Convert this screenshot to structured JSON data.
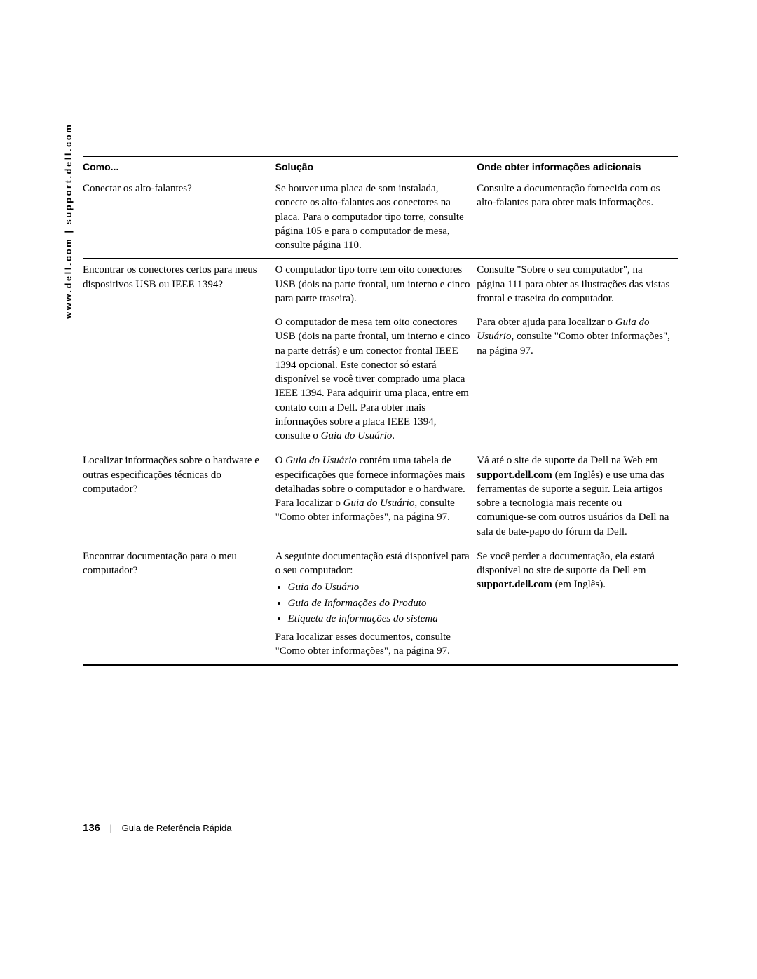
{
  "side_label": "www.dell.com | support.dell.com",
  "headers": {
    "c1": "Como...",
    "c2": "Solução",
    "c3": "Onde obter informações adicionais"
  },
  "rows": {
    "r1": {
      "c1": "Conectar os alto-falantes?",
      "c2": "Se houver uma placa de som instalada, conecte os alto-falantes aos conectores na placa. Para o computador tipo torre, consulte página 105 e para o computador de mesa, consulte página 110.",
      "c3": "Consulte a documentação fornecida com os alto-falantes para obter mais informações."
    },
    "r2a": {
      "c1": "Encontrar os conectores certos para meus dispositivos USB ou IEEE 1394?",
      "c2": "O computador tipo torre tem oito conectores USB (dois na parte frontal, um interno e cinco para parte traseira).",
      "c3": "Consulte \"Sobre o seu computador\", na página 111 para obter as ilustrações das vistas frontal e traseira do computador."
    },
    "r2b": {
      "c2_pre": "O computador de mesa tem oito conectores USB (dois na parte frontal, um interno e cinco na parte detrás) e um conector frontal IEEE 1394 opcional. Este conector só estará disponível se você tiver comprado uma placa IEEE 1394. Para adquirir uma placa, entre em contato com a Dell. Para obter mais informações sobre a placa IEEE 1394, consulte o ",
      "c2_ital": "Guia do Usuário",
      "c2_post": ".",
      "c3_pre": "Para obter ajuda para localizar o ",
      "c3_ital": "Guia do Usuário",
      "c3_mid": ", consulte \"Como obter informações\", na página 97."
    },
    "r3": {
      "c1": "Localizar informações sobre o hardware e outras especificações técnicas do computador?",
      "c2_pre": "O ",
      "c2_ital1": "Guia do Usuário",
      "c2_mid": " contém uma tabela de especificações que fornece informações mais detalhadas sobre o computador e o hardware. Para localizar o ",
      "c2_ital2": "Guia do Usuário",
      "c2_post": ", consulte \"Como obter informações\", na página 97.",
      "c3_pre": "Vá até o site de suporte da Dell na Web em ",
      "c3_bold": "support.dell.com",
      "c3_post": " (em Inglês) e use uma das ferramentas de suporte a seguir. Leia artigos sobre a tecnologia mais recente ou comunique-se com outros usuários da Dell na sala de bate-papo do fórum da Dell."
    },
    "r4": {
      "c1": "Encontrar documentação para o meu computador?",
      "c2_intro": "A seguinte documentação está disponível para o seu computador:",
      "c2_items": [
        "Guia do Usuário",
        "Guia de Informações do Produto",
        "Etiqueta de informações do sistema"
      ],
      "c2_tail": "Para localizar esses documentos, consulte \"Como obter informações\", na página 97.",
      "c3_pre": "Se você perder a documentação, ela estará disponível no site de suporte da Dell em ",
      "c3_bold": "support.dell.com",
      "c3_post": " (em Inglês)."
    }
  },
  "footer": {
    "page_number": "136",
    "doc_title": "Guia de Referência Rápida"
  }
}
